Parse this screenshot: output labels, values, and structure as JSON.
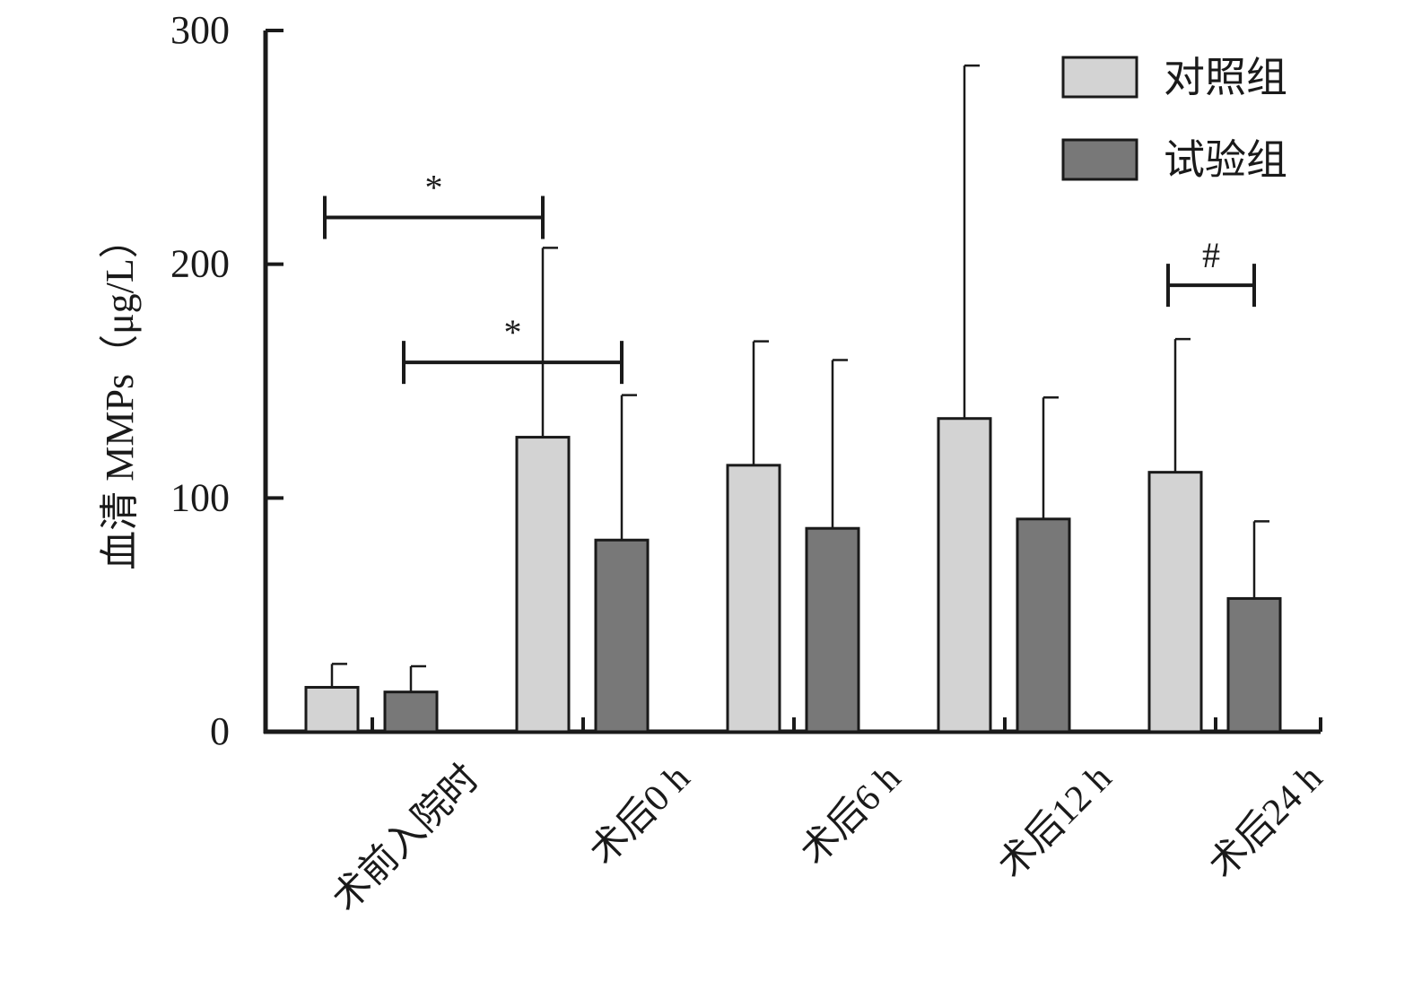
{
  "chart_data": {
    "type": "bar",
    "ylabel": "血清 MMPs（μg/L）",
    "ylim": [
      0,
      300
    ],
    "yticks": [
      "0",
      "100",
      "200",
      "300"
    ],
    "categories": [
      "术前入院时",
      "术后0 h",
      "术后6 h",
      "术后12 h",
      "术后24 h"
    ],
    "series": [
      {
        "name": "对照组",
        "color": "#d3d3d3",
        "values": [
          19,
          126,
          114,
          134,
          111
        ],
        "errors": [
          10,
          81,
          53,
          151,
          57
        ]
      },
      {
        "name": "试验组",
        "color": "#787878",
        "values": [
          17,
          82,
          87,
          91,
          57
        ],
        "errors": [
          11,
          62,
          72,
          52,
          33
        ]
      }
    ],
    "legend_position": "top-right",
    "grid": false,
    "significance": [
      {
        "label": "*",
        "from": "术前入院时 对照组",
        "to": "术后0 h 对照组",
        "y": 220
      },
      {
        "label": "*",
        "from": "术前入院时 试验组",
        "to": "术后0 h 试验组",
        "y": 158
      },
      {
        "label": "#",
        "from": "术后24 h 对照组",
        "to": "术后24 h 试验组",
        "y": 191
      }
    ]
  }
}
